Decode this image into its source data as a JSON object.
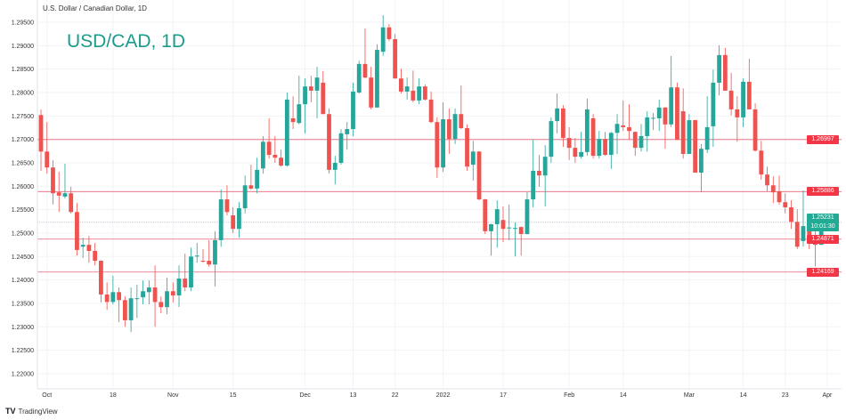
{
  "header": {
    "symbol_title": "U.S. Dollar / Canadian Dollar, 1D",
    "watermark": "USD/CAD, 1D",
    "brand": "TradingView"
  },
  "current_price": {
    "value": "1.25231",
    "countdown": "10:01:30",
    "color": "#22ab94"
  },
  "price_levels": [
    {
      "label": "1.26997",
      "value": 1.26997
    },
    {
      "label": "1.25886",
      "value": 1.25886
    },
    {
      "label": "1.24871",
      "value": 1.24871
    },
    {
      "label": "1.24169",
      "value": 1.24169
    }
  ],
  "colors": {
    "up": "#26a69a",
    "down": "#ef5350",
    "level_line": "#e8647a",
    "level_tag": "#f23645"
  },
  "chart_data": {
    "type": "candlestick",
    "title": "U.S. Dollar / Canadian Dollar, 1D",
    "ylim": [
      1.2175,
      1.2975
    ],
    "y_ticks": [
      "1.29500",
      "1.29000",
      "1.28500",
      "1.28000",
      "1.27500",
      "1.27000",
      "1.26500",
      "1.26000",
      "1.25500",
      "1.25000",
      "1.24500",
      "1.24000",
      "1.23500",
      "1.23000",
      "1.22500",
      "1.22000"
    ],
    "x_ticks": [
      {
        "label": "Oct",
        "date": "2021-10-01"
      },
      {
        "label": "18",
        "date": "2021-10-18"
      },
      {
        "label": "Nov",
        "date": "2021-11-01"
      },
      {
        "label": "15",
        "date": "2021-11-15"
      },
      {
        "label": "Dec",
        "date": "2021-12-01"
      },
      {
        "label": "13",
        "date": "2021-12-13"
      },
      {
        "label": "22",
        "date": "2021-12-22"
      },
      {
        "label": "2022",
        "date": "2022-01-03"
      },
      {
        "label": "17",
        "date": "2022-01-17"
      },
      {
        "label": "Feb",
        "date": "2022-02-01"
      },
      {
        "label": "14",
        "date": "2022-02-14"
      },
      {
        "label": "Mar",
        "date": "2022-03-01"
      },
      {
        "label": "14",
        "date": "2022-03-14"
      },
      {
        "label": "23",
        "date": "2022-03-23"
      },
      {
        "label": "Apr",
        "date": "2022-04-01"
      }
    ],
    "grid": true,
    "columns": [
      "date",
      "open",
      "high",
      "low",
      "close"
    ],
    "candles": [
      [
        "2021-09-30",
        1.2752,
        1.2764,
        1.2633,
        1.2674
      ],
      [
        "2021-10-01",
        1.2674,
        1.2737,
        1.2627,
        1.264
      ],
      [
        "2021-10-04",
        1.264,
        1.2656,
        1.2561,
        1.2585
      ],
      [
        "2021-10-05",
        1.2587,
        1.2631,
        1.2545,
        1.258
      ],
      [
        "2021-10-06",
        1.2578,
        1.2648,
        1.2574,
        1.2585
      ],
      [
        "2021-10-07",
        1.2585,
        1.2599,
        1.2542,
        1.2545
      ],
      [
        "2021-10-08",
        1.2545,
        1.2564,
        1.2452,
        1.2464
      ],
      [
        "2021-10-11",
        1.2471,
        1.249,
        1.2447,
        1.2475
      ],
      [
        "2021-10-12",
        1.2475,
        1.2494,
        1.2437,
        1.2462
      ],
      [
        "2021-10-13",
        1.2462,
        1.2479,
        1.2431,
        1.2441
      ],
      [
        "2021-10-14",
        1.2441,
        1.2442,
        1.2352,
        1.2369
      ],
      [
        "2021-10-15",
        1.2369,
        1.2395,
        1.2336,
        1.2353
      ],
      [
        "2021-10-18",
        1.2353,
        1.2409,
        1.2348,
        1.2374
      ],
      [
        "2021-10-19",
        1.2374,
        1.2384,
        1.231,
        1.2357
      ],
      [
        "2021-10-20",
        1.2357,
        1.2365,
        1.23,
        1.2314
      ],
      [
        "2021-10-21",
        1.2314,
        1.2384,
        1.2289,
        1.2361
      ],
      [
        "2021-10-22",
        1.2359,
        1.239,
        1.2319,
        1.2361
      ],
      [
        "2021-10-25",
        1.2363,
        1.2399,
        1.2348,
        1.2376
      ],
      [
        "2021-10-26",
        1.2374,
        1.2399,
        1.2348,
        1.2384
      ],
      [
        "2021-10-27",
        1.2384,
        1.2431,
        1.23,
        1.2353
      ],
      [
        "2021-10-28",
        1.2353,
        1.2365,
        1.2329,
        1.2342
      ],
      [
        "2021-10-29",
        1.2342,
        1.2405,
        1.2327,
        1.2376
      ],
      [
        "2021-11-01",
        1.2376,
        1.2395,
        1.2352,
        1.2367
      ],
      [
        "2021-11-02",
        1.2367,
        1.2431,
        1.2342,
        1.2403
      ],
      [
        "2021-11-03",
        1.2403,
        1.2456,
        1.2376,
        1.2384
      ],
      [
        "2021-11-04",
        1.2384,
        1.2469,
        1.2376,
        1.245
      ],
      [
        "2021-11-05",
        1.245,
        1.2479,
        1.2437,
        1.2452
      ],
      [
        "2021-11-08",
        1.2441,
        1.2466,
        1.2437,
        1.2439
      ],
      [
        "2021-11-09",
        1.2441,
        1.2485,
        1.2428,
        1.2433
      ],
      [
        "2021-11-10",
        1.2433,
        1.2504,
        1.2386,
        1.2485
      ],
      [
        "2021-11-11",
        1.2485,
        1.2593,
        1.2471,
        1.2572
      ],
      [
        "2021-11-12",
        1.2572,
        1.2602,
        1.2538,
        1.2545
      ],
      [
        "2021-11-15",
        1.2538,
        1.2555,
        1.25,
        1.2509
      ],
      [
        "2021-11-16",
        1.2509,
        1.2566,
        1.249,
        1.2553
      ],
      [
        "2021-11-17",
        1.2553,
        1.2623,
        1.2542,
        1.2602
      ],
      [
        "2021-11-18",
        1.2602,
        1.2646,
        1.2593,
        1.2595
      ],
      [
        "2021-11-19",
        1.2595,
        1.2661,
        1.2585,
        1.2635
      ],
      [
        "2021-11-22",
        1.2638,
        1.2707,
        1.2627,
        1.2695
      ],
      [
        "2021-11-23",
        1.2695,
        1.2745,
        1.2659,
        1.2667
      ],
      [
        "2021-11-24",
        1.2667,
        1.2707,
        1.265,
        1.2661
      ],
      [
        "2021-11-25",
        1.2661,
        1.2678,
        1.2642,
        1.2644
      ],
      [
        "2021-11-26",
        1.2644,
        1.28,
        1.2642,
        1.2785
      ],
      [
        "2021-11-29",
        1.2745,
        1.2792,
        1.2722,
        1.2737
      ],
      [
        "2021-11-30",
        1.2735,
        1.2836,
        1.2732,
        1.2775
      ],
      [
        "2021-12-01",
        1.2775,
        1.283,
        1.2713,
        1.2813
      ],
      [
        "2021-12-02",
        1.2813,
        1.2836,
        1.2779,
        1.2804
      ],
      [
        "2021-12-03",
        1.2804,
        1.2855,
        1.2745,
        1.2832
      ],
      [
        "2021-12-06",
        1.2821,
        1.2846,
        1.2754,
        1.2754
      ],
      [
        "2021-12-07",
        1.2754,
        1.2766,
        1.2627,
        1.2635
      ],
      [
        "2021-12-08",
        1.2635,
        1.2665,
        1.2604,
        1.265
      ],
      [
        "2021-12-09",
        1.265,
        1.2722,
        1.2646,
        1.2713
      ],
      [
        "2021-12-10",
        1.2711,
        1.2737,
        1.2678,
        1.2722
      ],
      [
        "2021-12-13",
        1.2722,
        1.2821,
        1.2707,
        1.2802
      ],
      [
        "2021-12-14",
        1.28,
        1.2868,
        1.2798,
        1.2861
      ],
      [
        "2021-12-15",
        1.2861,
        1.2937,
        1.283,
        1.2832
      ],
      [
        "2021-12-16",
        1.2832,
        1.2855,
        1.2764,
        1.2768
      ],
      [
        "2021-12-17",
        1.2768,
        1.2903,
        1.2768,
        1.2891
      ],
      [
        "2021-12-20",
        1.2887,
        1.2965,
        1.2878,
        1.2939
      ],
      [
        "2021-12-21",
        1.2939,
        1.2946,
        1.291,
        1.2914
      ],
      [
        "2021-12-22",
        1.2914,
        1.2925,
        1.283,
        1.283
      ],
      [
        "2021-12-23",
        1.283,
        1.2851,
        1.2798,
        1.2802
      ],
      [
        "2021-12-24",
        1.2802,
        1.2832,
        1.2785,
        1.2813
      ],
      [
        "2021-12-27",
        1.2804,
        1.2847,
        1.2779,
        1.2783
      ],
      [
        "2021-12-28",
        1.2783,
        1.283,
        1.2775,
        1.2813
      ],
      [
        "2021-12-29",
        1.2813,
        1.2817,
        1.2783,
        1.2785
      ],
      [
        "2021-12-30",
        1.2785,
        1.2802,
        1.2735,
        1.2737
      ],
      [
        "2021-12-31",
        1.2737,
        1.2747,
        1.2618,
        1.264
      ],
      [
        "2022-01-03",
        1.264,
        1.2779,
        1.2631,
        1.2743
      ],
      [
        "2022-01-04",
        1.2743,
        1.2766,
        1.2669,
        1.2701
      ],
      [
        "2022-01-05",
        1.2701,
        1.2766,
        1.269,
        1.2754
      ],
      [
        "2022-01-06",
        1.2754,
        1.2815,
        1.2722,
        1.2724
      ],
      [
        "2022-01-07",
        1.2724,
        1.2732,
        1.2633,
        1.2642
      ],
      [
        "2022-01-10",
        1.2646,
        1.2697,
        1.2612,
        1.2674
      ],
      [
        "2022-01-11",
        1.2674,
        1.2675,
        1.257,
        1.2572
      ],
      [
        "2022-01-12",
        1.2572,
        1.2573,
        1.2498,
        1.2504
      ],
      [
        "2022-01-13",
        1.2504,
        1.252,
        1.2452,
        1.2519
      ],
      [
        "2022-01-14",
        1.2519,
        1.257,
        1.2469,
        1.2551
      ],
      [
        "2022-01-17",
        1.2528,
        1.2557,
        1.2481,
        1.2509
      ],
      [
        "2022-01-18",
        1.2511,
        1.2561,
        1.2485,
        1.2512
      ],
      [
        "2022-01-19",
        1.2509,
        1.2523,
        1.245,
        1.2511
      ],
      [
        "2022-01-20",
        1.2513,
        1.2514,
        1.2452,
        1.2498
      ],
      [
        "2022-01-21",
        1.2498,
        1.2587,
        1.2497,
        1.2572
      ],
      [
        "2022-01-24",
        1.2572,
        1.2699,
        1.2555,
        1.2633
      ],
      [
        "2022-01-25",
        1.2633,
        1.2667,
        1.2599,
        1.2623
      ],
      [
        "2022-01-26",
        1.2623,
        1.2688,
        1.2557,
        1.2663
      ],
      [
        "2022-01-27",
        1.2663,
        1.2747,
        1.265,
        1.2739
      ],
      [
        "2022-01-28",
        1.2739,
        1.2798,
        1.2713,
        1.2766
      ],
      [
        "2022-01-31",
        1.2766,
        1.2773,
        1.2684,
        1.2703
      ],
      [
        "2022-02-01",
        1.2703,
        1.2726,
        1.2656,
        1.2682
      ],
      [
        "2022-02-02",
        1.2682,
        1.2703,
        1.265,
        1.2663
      ],
      [
        "2022-02-03",
        1.2663,
        1.2716,
        1.2659,
        1.2673
      ],
      [
        "2022-02-04",
        1.2673,
        1.2787,
        1.2665,
        1.2764
      ],
      [
        "2022-02-07",
        1.2745,
        1.2754,
        1.2659,
        1.2665
      ],
      [
        "2022-02-08",
        1.2665,
        1.2718,
        1.2659,
        1.2701
      ],
      [
        "2022-02-09",
        1.2701,
        1.2716,
        1.2665,
        1.2667
      ],
      [
        "2022-02-10",
        1.2667,
        1.2716,
        1.2637,
        1.2714
      ],
      [
        "2022-02-11",
        1.2714,
        1.2754,
        1.2669,
        1.2733
      ],
      [
        "2022-02-14",
        1.273,
        1.2783,
        1.2718,
        1.2726
      ],
      [
        "2022-02-15",
        1.2726,
        1.2775,
        1.2699,
        1.2718
      ],
      [
        "2022-02-16",
        1.2716,
        1.2717,
        1.2665,
        1.2682
      ],
      [
        "2022-02-17",
        1.2682,
        1.2733,
        1.2674,
        1.2707
      ],
      [
        "2022-02-18",
        1.2707,
        1.276,
        1.2674,
        1.2747
      ],
      [
        "2022-02-21",
        1.2745,
        1.2756,
        1.272,
        1.2746
      ],
      [
        "2022-02-22",
        1.2745,
        1.2785,
        1.2718,
        1.2768
      ],
      [
        "2022-02-23",
        1.2768,
        1.2769,
        1.268,
        1.2732
      ],
      [
        "2022-02-24",
        1.2732,
        1.2878,
        1.2726,
        1.2811
      ],
      [
        "2022-02-25",
        1.2811,
        1.2821,
        1.2699,
        1.2699
      ],
      [
        "2022-02-28",
        1.276,
        1.2809,
        1.2659,
        1.2669
      ],
      [
        "2022-03-01",
        1.2669,
        1.2754,
        1.2669,
        1.2741
      ],
      [
        "2022-03-02",
        1.2741,
        1.2742,
        1.2629,
        1.2629
      ],
      [
        "2022-03-03",
        1.2629,
        1.269,
        1.2587,
        1.268
      ],
      [
        "2022-03-04",
        1.2678,
        1.2792,
        1.2671,
        1.2726
      ],
      [
        "2022-03-07",
        1.2728,
        1.2849,
        1.2684,
        1.2821
      ],
      [
        "2022-03-08",
        1.2821,
        1.2901,
        1.2794,
        1.288
      ],
      [
        "2022-03-09",
        1.288,
        1.2895,
        1.2804,
        1.2804
      ],
      [
        "2022-03-10",
        1.2804,
        1.2842,
        1.2751,
        1.2764
      ],
      [
        "2022-03-11",
        1.2764,
        1.2792,
        1.2695,
        1.2747
      ],
      [
        "2022-03-14",
        1.2747,
        1.283,
        1.2726,
        1.2823
      ],
      [
        "2022-03-15",
        1.2823,
        1.2872,
        1.2764,
        1.2764
      ],
      [
        "2022-03-16",
        1.2764,
        1.2777,
        1.2674,
        1.2676
      ],
      [
        "2022-03-17",
        1.2676,
        1.2697,
        1.2614,
        1.2625
      ],
      [
        "2022-03-18",
        1.2625,
        1.2642,
        1.2589,
        1.2602
      ],
      [
        "2022-03-21",
        1.2602,
        1.2621,
        1.2564,
        1.2587
      ],
      [
        "2022-03-22",
        1.2589,
        1.2623,
        1.2561,
        1.2566
      ],
      [
        "2022-03-23",
        1.2566,
        1.2585,
        1.2542,
        1.2555
      ],
      [
        "2022-03-24",
        1.2555,
        1.257,
        1.2509,
        1.2524
      ],
      [
        "2022-03-25",
        1.2524,
        1.2551,
        1.2466,
        1.2471
      ],
      [
        "2022-03-28",
        1.2483,
        1.2591,
        1.2471,
        1.2515
      ],
      [
        "2022-03-29",
        1.2515,
        1.2528,
        1.2466,
        1.249
      ],
      [
        "2022-03-30",
        1.249,
        1.2507,
        1.2429,
        1.2475
      ],
      [
        "2022-03-31",
        1.2475,
        1.2534,
        1.2475,
        1.2523
      ]
    ]
  }
}
